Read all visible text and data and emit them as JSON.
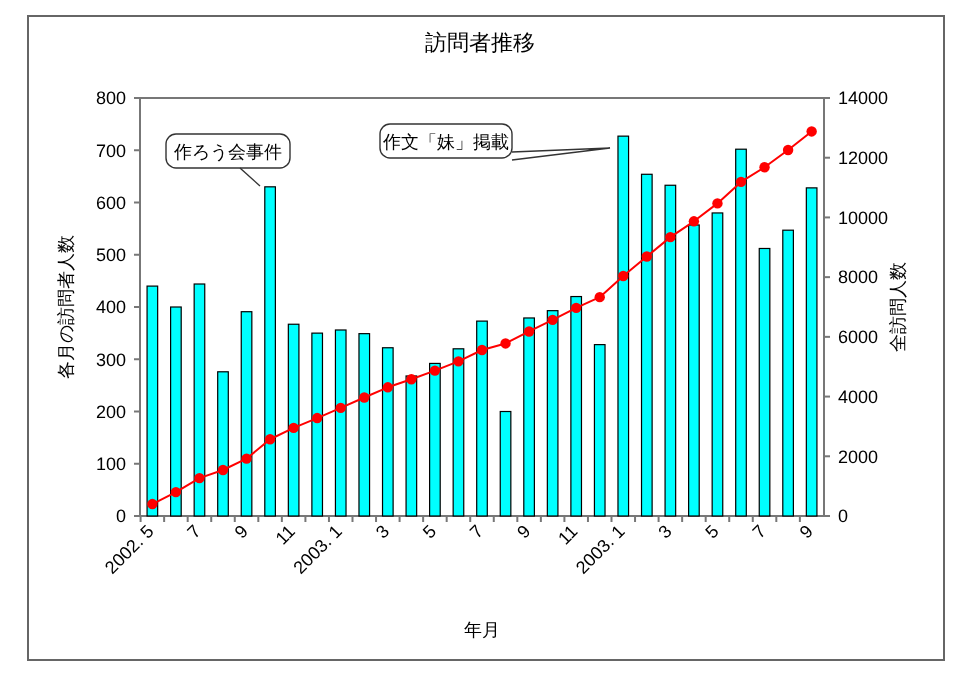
{
  "chart_data": {
    "type": "bar",
    "title": "訪問者推移",
    "xlabel": "年月",
    "ylabel": "各月の訪問者人数",
    "y2label": "全訪問人数",
    "categories": [
      "2002. 5",
      null,
      "7",
      null,
      "9",
      null,
      "11",
      null,
      "2003. 1",
      null,
      "3",
      null,
      "5",
      null,
      "7",
      null,
      "9",
      null,
      "11",
      null,
      "2003. 1",
      null,
      "3",
      null,
      "5",
      null,
      "7",
      null,
      "9"
    ],
    "series": [
      {
        "color": "#00ffff",
        "values": [
          440,
          400,
          444,
          276,
          391,
          630,
          367,
          350,
          356,
          349,
          322,
          268,
          292,
          320,
          373,
          200,
          379,
          393,
          420,
          328,
          727,
          654,
          633,
          557,
          580,
          702,
          512,
          547,
          628
        ]
      },
      {
        "type": "line",
        "axis": "y2",
        "color": "#ff0000",
        "marker": "circle",
        "values": [
          400,
          800,
          1270,
          1540,
          1920,
          2570,
          2950,
          3280,
          3620,
          3970,
          4310,
          4580,
          4870,
          5180,
          5560,
          5780,
          6180,
          6570,
          6970,
          7330,
          8040,
          8690,
          9340,
          9870,
          10470,
          11190,
          11680,
          12260,
          12880
        ]
      }
    ],
    "ylim": [
      0,
      800
    ],
    "yticks": [
      0,
      100,
      200,
      300,
      400,
      500,
      600,
      700,
      800
    ],
    "y2lim": [
      0,
      14000
    ],
    "y2ticks": [
      0,
      2000,
      4000,
      6000,
      8000,
      10000,
      12000,
      14000
    ],
    "annotations": [
      "作ろう会事件",
      "作文「妹」掲載"
    ],
    "grid": false
  }
}
